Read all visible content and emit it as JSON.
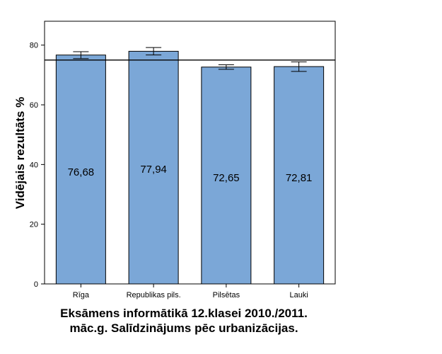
{
  "chart_data": {
    "type": "bar",
    "title": "",
    "xlabel": "",
    "ylabel": "Vidējais rezultāts %",
    "categories": [
      "Rīga",
      "Republikas pils.",
      "Pilsētas",
      "Lauki"
    ],
    "values": [
      76.68,
      77.94,
      72.65,
      72.81
    ],
    "value_labels": [
      "76,68",
      "77,94",
      "72,65",
      "72,81"
    ],
    "error_bars": [
      {
        "low": 75.5,
        "high": 77.8
      },
      {
        "low": 76.7,
        "high": 79.2
      },
      {
        "low": 71.9,
        "high": 73.4
      },
      {
        "low": 71.2,
        "high": 74.4
      }
    ],
    "reference_line": 75,
    "ylim": [
      0,
      88
    ],
    "yticks": [
      0,
      20,
      40,
      60,
      80
    ],
    "grid": false,
    "bar_color": "#7ba7d7",
    "bar_edge_color": "#000000"
  },
  "caption": {
    "line1": "Eksāmens informātikā 12.klasei 2010./2011.",
    "line2": "māc.g. Salīdzinājums pēc urbanizācijas."
  }
}
